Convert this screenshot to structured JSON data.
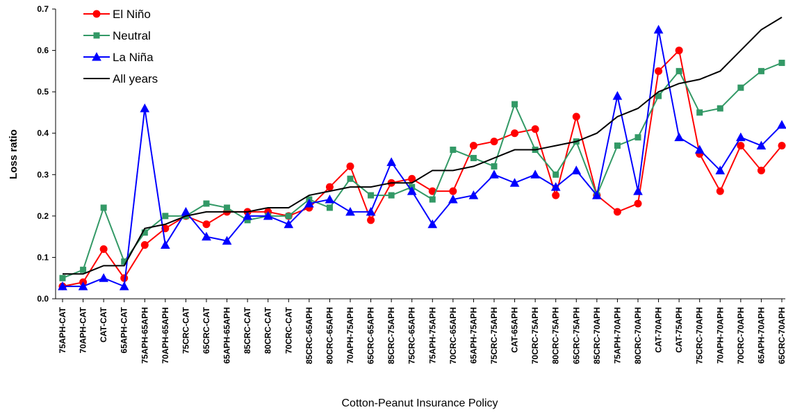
{
  "chart_data": {
    "type": "line",
    "y_label": "Loss ratio",
    "x_label": "Cotton-Peanut Insurance Policy",
    "categories": [
      "75APH-CAT",
      "70APH-CAT",
      "CAT-CAT",
      "65APH-CAT",
      "75APH-65APH",
      "70APH-65APH",
      "75CRC-CAT",
      "65CRC-CAT",
      "65APH-65APH",
      "85CRC-CAT",
      "80CRC-CAT",
      "70CRC-CAT",
      "85CRC-65APH",
      "80CRC-65APH",
      "70APH-75APH",
      "65CRC-65APH",
      "85CRC-75APH",
      "75CRC-65APH",
      "75APH-75APH",
      "70CRC-65APH",
      "65APH-75APH",
      "75CRC-75APH",
      "CAT-65APH",
      "70CRC-75APH",
      "80CRC-75APH",
      "65CRC-75APH",
      "85CRC-70APH",
      "75APH-70APH",
      "80CRC-70APH",
      "CAT-70APH",
      "CAT-75APH",
      "75CRC-70APH",
      "70APH-70APH",
      "70CRC-70APH",
      "65APH-70APH",
      "65CRC-70APH"
    ],
    "series": [
      {
        "name": "El Niño",
        "color": "#ff0000",
        "marker": "circle",
        "values": [
          0.03,
          0.04,
          0.12,
          0.05,
          0.13,
          0.17,
          0.2,
          0.18,
          0.21,
          0.21,
          0.21,
          0.2,
          0.22,
          0.27,
          0.32,
          0.19,
          0.28,
          0.29,
          0.26,
          0.26,
          0.37,
          0.38,
          0.4,
          0.41,
          0.25,
          0.44,
          0.25,
          0.21,
          0.23,
          0.55,
          0.6,
          0.35,
          0.26,
          0.37,
          0.31,
          0.37
        ]
      },
      {
        "name": "Neutral",
        "color": "#339966",
        "marker": "square",
        "values": [
          0.05,
          0.07,
          0.22,
          0.09,
          0.16,
          0.2,
          0.2,
          0.23,
          0.22,
          0.19,
          0.2,
          0.2,
          0.24,
          0.22,
          0.29,
          0.25,
          0.25,
          0.27,
          0.24,
          0.36,
          0.34,
          0.32,
          0.47,
          0.36,
          0.3,
          0.38,
          0.25,
          0.37,
          0.39,
          0.49,
          0.55,
          0.45,
          0.46,
          0.51,
          0.55,
          0.57
        ]
      },
      {
        "name": "La Niña",
        "color": "#0000ff",
        "marker": "triangle",
        "values": [
          0.03,
          0.03,
          0.05,
          0.03,
          0.46,
          0.13,
          0.21,
          0.15,
          0.14,
          0.2,
          0.2,
          0.18,
          0.23,
          0.24,
          0.21,
          0.21,
          0.33,
          0.26,
          0.18,
          0.24,
          0.25,
          0.3,
          0.28,
          0.3,
          0.27,
          0.31,
          0.25,
          0.49,
          0.26,
          0.65,
          0.39,
          0.36,
          0.31,
          0.39,
          0.37,
          0.42
        ]
      },
      {
        "name": "All years",
        "color": "#000000",
        "marker": "none",
        "values": [
          0.06,
          0.06,
          0.08,
          0.08,
          0.17,
          0.18,
          0.2,
          0.21,
          0.21,
          0.21,
          0.22,
          0.22,
          0.25,
          0.26,
          0.27,
          0.27,
          0.28,
          0.28,
          0.31,
          0.31,
          0.32,
          0.34,
          0.36,
          0.36,
          0.37,
          0.38,
          0.4,
          0.44,
          0.46,
          0.5,
          0.52,
          0.53,
          0.55,
          0.6,
          0.65,
          0.68
        ]
      }
    ],
    "ylim": [
      0,
      0.7
    ],
    "yticks": [
      {
        "value": 0,
        "label": "0.0"
      },
      0.1,
      0.2,
      0.3,
      0.4,
      0.5,
      0.6,
      0.7
    ],
    "legend": "top-left"
  }
}
